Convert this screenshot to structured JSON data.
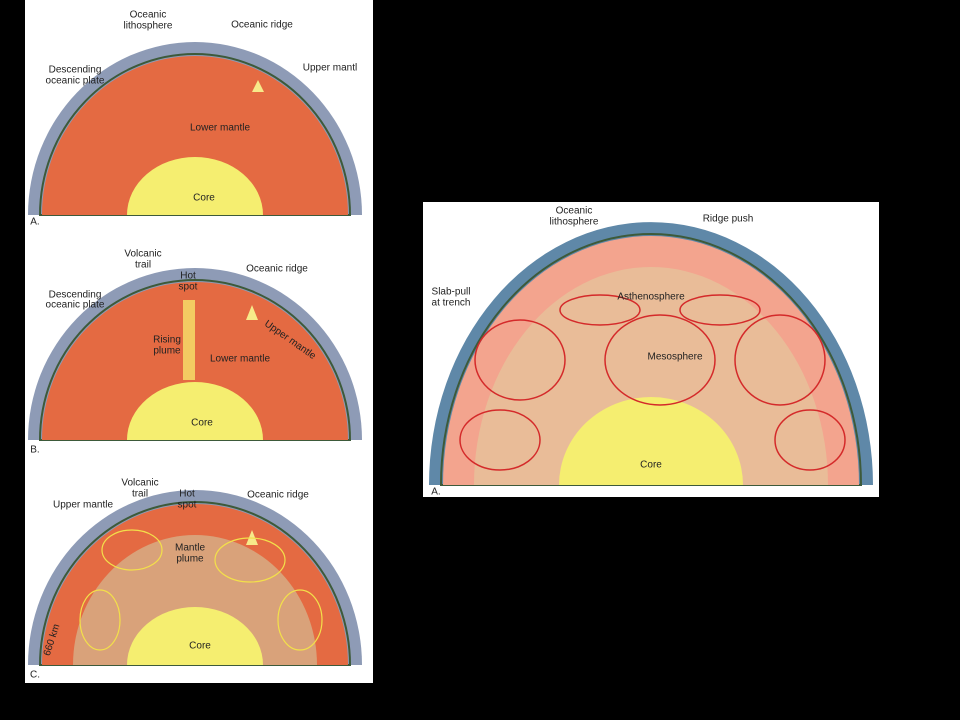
{
  "panels": [
    {
      "letter": "A.",
      "labels": [
        [
          "Oceanic",
          "lithosphere"
        ],
        [
          "Oceanic ridge"
        ],
        [
          "Descending",
          "oceanic plate"
        ],
        [
          "Upper mantl"
        ],
        [
          "Lower mantle"
        ],
        [
          "Core"
        ]
      ]
    },
    {
      "letter": "B.",
      "labels": [
        [
          "Volcanic",
          "trail"
        ],
        [
          "Hot",
          "spot"
        ],
        [
          "Oceanic ridge"
        ],
        [
          "Descending",
          "oceanic plate"
        ],
        [
          "Upper mantle"
        ],
        [
          "Rising",
          "plume"
        ],
        [
          "Lower mantle"
        ],
        [
          "Core"
        ]
      ]
    },
    {
      "letter": "C.",
      "labels": [
        [
          "Upper mantle"
        ],
        [
          "Volcanic",
          "trail"
        ],
        [
          "Hot",
          "spot"
        ],
        [
          "Oceanic ridge"
        ],
        [
          "Mantle",
          "plume"
        ],
        [
          "660 km"
        ],
        [
          "Core"
        ]
      ]
    }
  ],
  "figure": {
    "letter": "A.",
    "labels": [
      [
        "Oceanic",
        "lithosphere"
      ],
      [
        "Ridge push"
      ],
      [
        "Slab-pull",
        "at trench"
      ],
      [
        "Asthenosphere"
      ],
      [
        "Mesosphere"
      ],
      [
        "Core"
      ]
    ]
  }
}
